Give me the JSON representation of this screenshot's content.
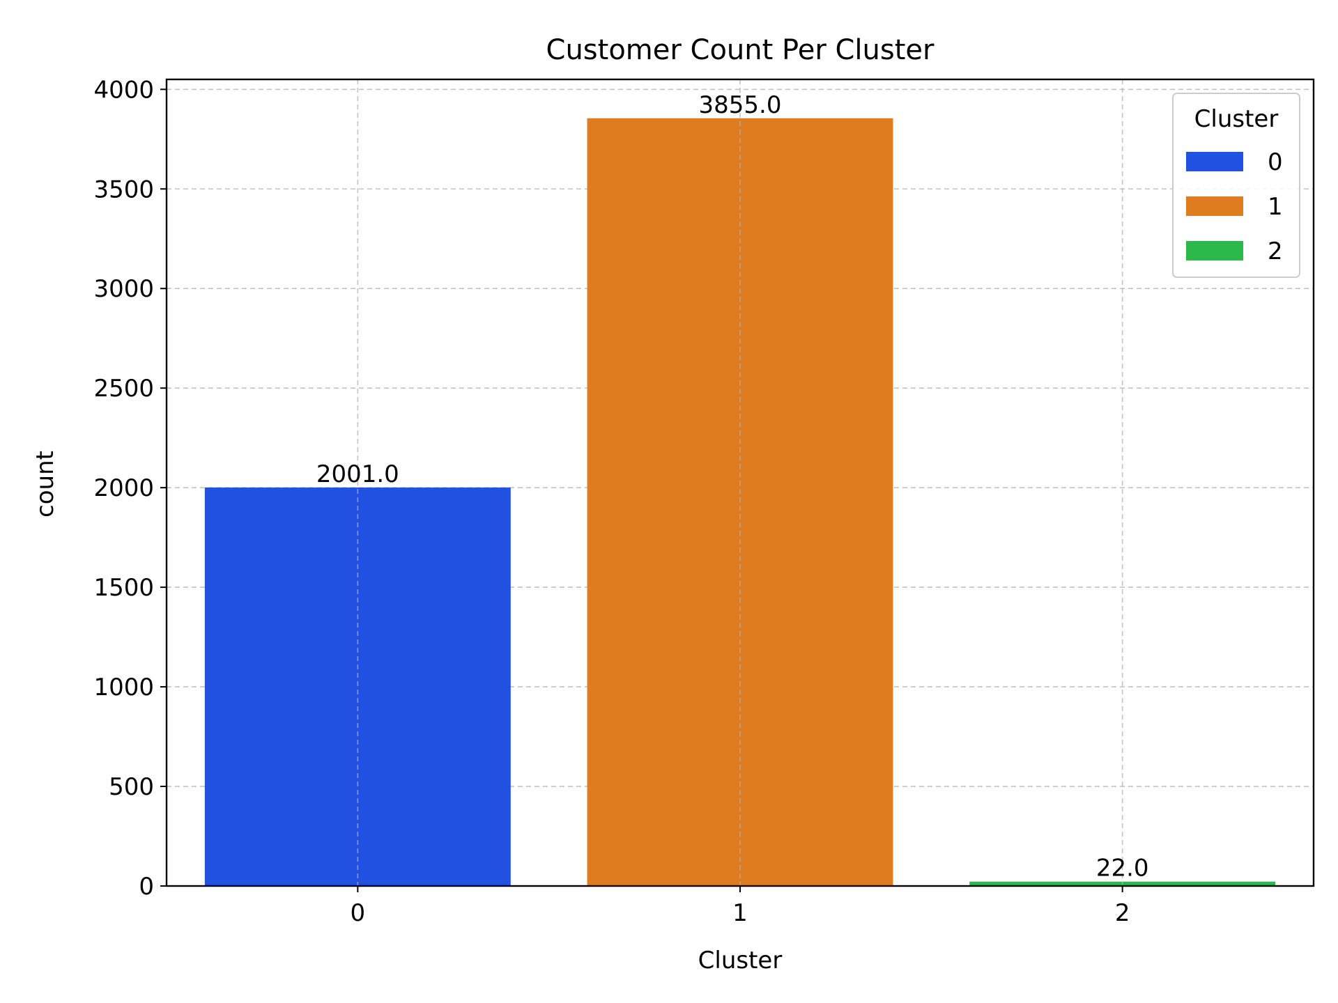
{
  "chart_data": {
    "type": "bar",
    "title": "Customer Count Per Cluster",
    "xlabel": "Cluster",
    "ylabel": "count",
    "categories": [
      "0",
      "1",
      "2"
    ],
    "values": [
      2001,
      3855,
      22
    ],
    "data_labels": [
      "2001.0",
      "3855.0",
      "22.0"
    ],
    "colors": [
      "#2250e1",
      "#e07c20",
      "#2db84b"
    ],
    "ylim": [
      0,
      4050
    ],
    "yticks": [
      0,
      500,
      1000,
      1500,
      2000,
      2500,
      3000,
      3500,
      4000
    ],
    "grid": true,
    "legend": {
      "title": "Cluster",
      "placement": "top-right",
      "entries": [
        "0",
        "1",
        "2"
      ]
    }
  }
}
